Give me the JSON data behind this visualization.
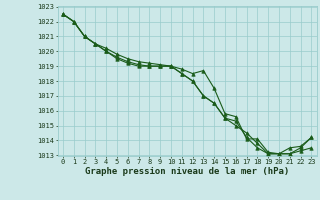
{
  "xlabel": "Graphe pression niveau de la mer (hPa)",
  "ylim": [
    1013,
    1023
  ],
  "xlim": [
    -0.5,
    23.5
  ],
  "yticks": [
    1013,
    1014,
    1015,
    1016,
    1017,
    1018,
    1019,
    1020,
    1021,
    1022,
    1023
  ],
  "xticks": [
    0,
    1,
    2,
    3,
    4,
    5,
    6,
    7,
    8,
    9,
    10,
    11,
    12,
    13,
    14,
    15,
    16,
    17,
    18,
    19,
    20,
    21,
    22,
    23
  ],
  "bg_color": "#cce8e8",
  "grid_color": "#99cccc",
  "line_color": "#1a5c1a",
  "line1": [
    1022.5,
    1022.0,
    1021.0,
    1020.5,
    1020.2,
    1019.8,
    1019.5,
    1019.3,
    1019.2,
    1019.1,
    1019.0,
    1018.8,
    1018.5,
    1018.7,
    1017.5,
    1015.8,
    1015.6,
    1014.1,
    1014.1,
    1013.2,
    1013.1,
    1013.1,
    1013.3,
    1013.5
  ],
  "line2": [
    1022.5,
    1022.0,
    1021.0,
    1020.5,
    1020.0,
    1019.6,
    1019.3,
    1019.1,
    1019.0,
    1019.0,
    1019.0,
    1018.5,
    1018.0,
    1017.0,
    1016.5,
    1015.5,
    1015.3,
    1014.2,
    1013.5,
    1013.1,
    1013.1,
    1013.5,
    1013.6,
    1014.2
  ],
  "line3": [
    1022.5,
    1022.0,
    1021.0,
    1020.5,
    1020.0,
    1019.5,
    1019.2,
    1019.0,
    1019.0,
    1019.0,
    1019.0,
    1018.5,
    1018.0,
    1017.0,
    1016.5,
    1015.5,
    1015.0,
    1014.5,
    1013.8,
    1013.1,
    1013.1,
    1013.1,
    1013.5,
    1014.2
  ],
  "marker": "^",
  "markersize": 2.5,
  "linewidth": 0.8,
  "label_fontsize": 6.5,
  "tick_fontsize": 5.0
}
